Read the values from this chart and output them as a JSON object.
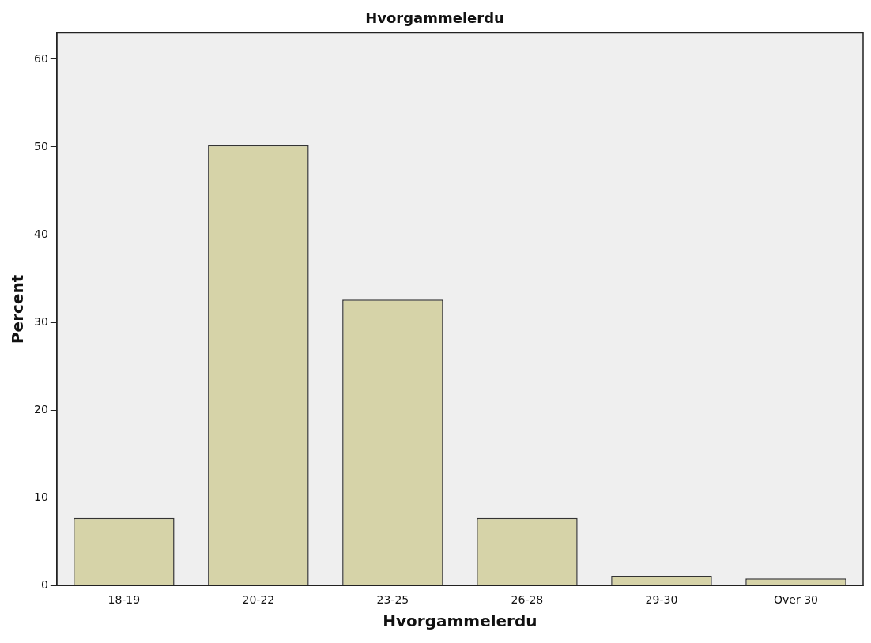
{
  "chart_data": {
    "type": "bar",
    "title": "Hvorgammelerdu",
    "xlabel": "Hvorgammelerdu",
    "ylabel": "Percent",
    "categories": [
      "18-19",
      "20-22",
      "23-25",
      "26-28",
      "29-30",
      "Over 30"
    ],
    "values": [
      7.7,
      50.2,
      32.6,
      7.7,
      1.1,
      0.8
    ],
    "color": "#d6d3a8",
    "ylim": [
      0,
      63
    ],
    "yticks": [
      0,
      10,
      20,
      30,
      40,
      50,
      60
    ],
    "grid": false,
    "legend": false
  }
}
